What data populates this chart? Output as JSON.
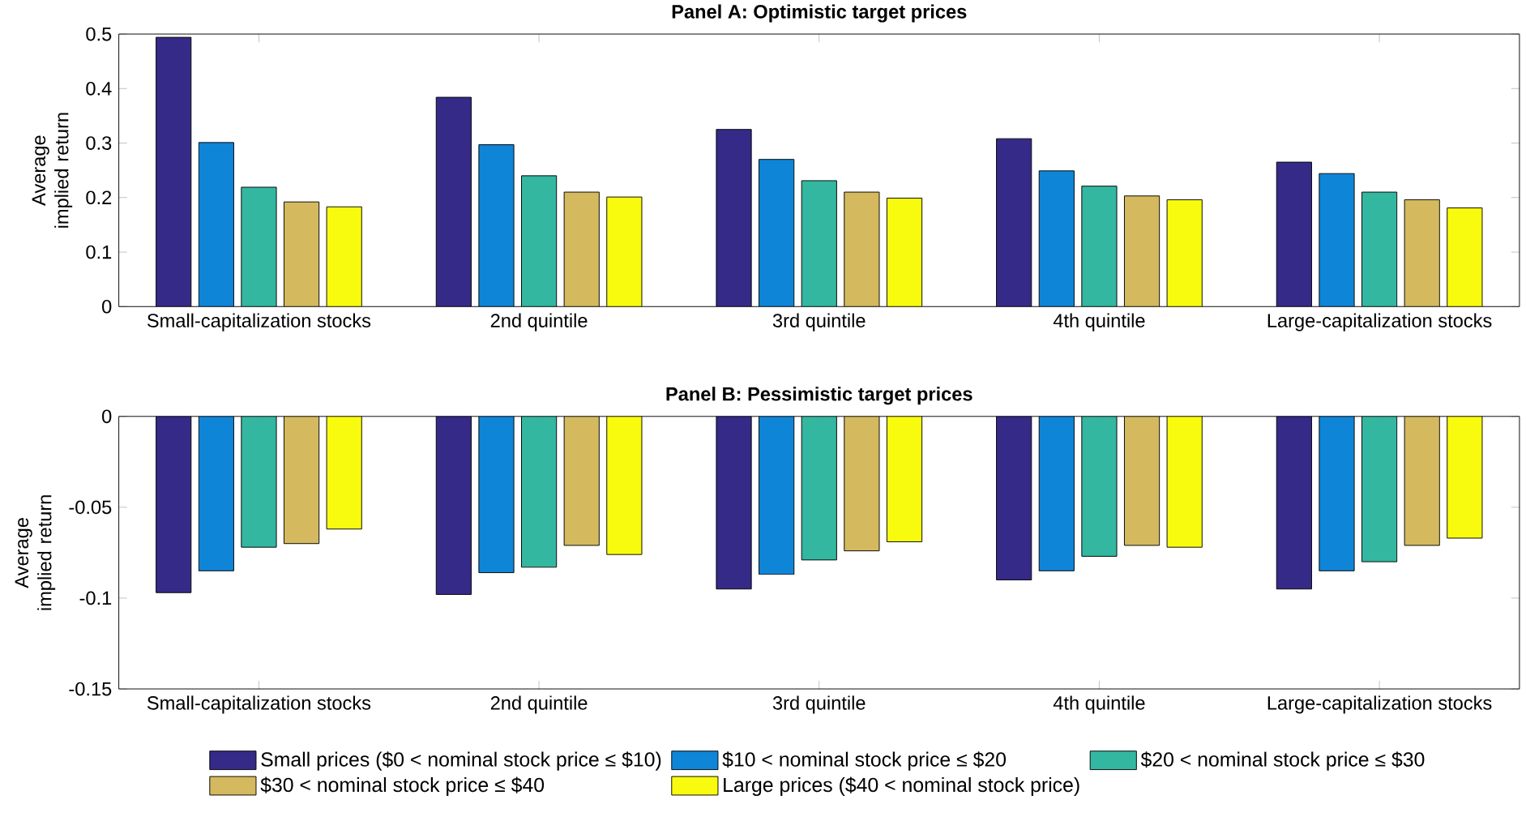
{
  "chart_data": [
    {
      "type": "bar",
      "title": "Panel A: Optimistic target prices",
      "ylabel": "Average implied return",
      "categories": [
        "Small-capitalization stocks",
        "2nd quintile",
        "3rd quintile",
        "4th quintile",
        "Large-capitalization stocks"
      ],
      "ylim": [
        0,
        0.5
      ],
      "yticks": [
        0,
        0.1,
        0.2,
        0.3,
        0.4,
        0.5
      ],
      "legend": false,
      "series": [
        {
          "color": "#352a87",
          "values": [
            0.494,
            0.384,
            0.325,
            0.308,
            0.265
          ]
        },
        {
          "color": "#0f85d8",
          "values": [
            0.301,
            0.297,
            0.27,
            0.249,
            0.244
          ]
        },
        {
          "color": "#33b7a0",
          "values": [
            0.219,
            0.24,
            0.231,
            0.221,
            0.21
          ]
        },
        {
          "color": "#d4b95e",
          "values": [
            0.192,
            0.21,
            0.21,
            0.203,
            0.196
          ]
        },
        {
          "color": "#f9fb0e",
          "values": [
            0.183,
            0.201,
            0.199,
            0.196,
            0.181
          ]
        }
      ]
    },
    {
      "type": "bar",
      "title": "Panel B: Pessimistic target prices",
      "ylabel": "Average implied return",
      "categories": [
        "Small-capitalization stocks",
        "2nd quintile",
        "3rd quintile",
        "4th quintile",
        "Large-capitalization stocks"
      ],
      "ylim": [
        -0.15,
        0
      ],
      "yticks": [
        -0.15,
        -0.1,
        -0.05,
        0
      ],
      "legend": "bottom",
      "series": [
        {
          "name": "Small prices ($0 < nominal stock price ≤ $10)",
          "color": "#352a87",
          "values": [
            -0.097,
            -0.098,
            -0.095,
            -0.09,
            -0.095
          ]
        },
        {
          "name": "$10 < nominal stock price ≤ $20",
          "color": "#0f85d8",
          "values": [
            -0.085,
            -0.086,
            -0.087,
            -0.085,
            -0.085
          ]
        },
        {
          "name": "$20 < nominal stock price ≤ $30",
          "color": "#33b7a0",
          "values": [
            -0.072,
            -0.083,
            -0.079,
            -0.077,
            -0.08
          ]
        },
        {
          "name": "$30 < nominal stock price ≤ $40",
          "color": "#d4b95e",
          "values": [
            -0.07,
            -0.071,
            -0.074,
            -0.071,
            -0.071
          ]
        },
        {
          "name": "Large prices ($40 < nominal stock price)",
          "color": "#f9fb0e",
          "values": [
            -0.062,
            -0.076,
            -0.069,
            -0.072,
            -0.067
          ]
        }
      ]
    }
  ]
}
